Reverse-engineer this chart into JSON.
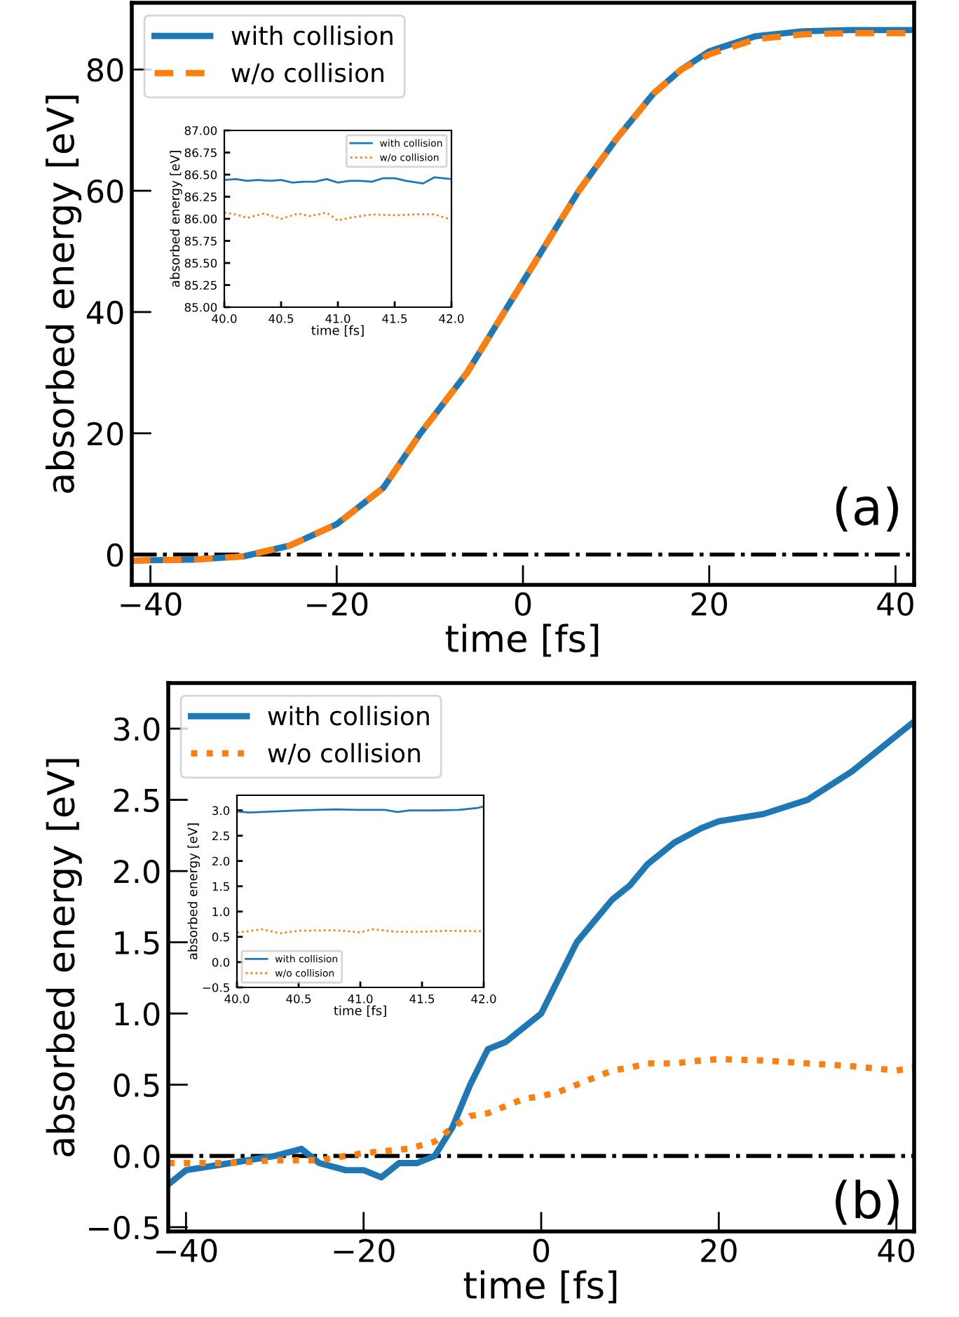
{
  "chart_data": [
    {
      "type": "line",
      "xlabel": "time [fs]",
      "ylabel": "absorbed energy [eV]",
      "xlim": [
        -42,
        42
      ],
      "ylim": [
        -5,
        91
      ],
      "xticks": [
        {
          "value": -40,
          "label": "−40"
        },
        {
          "value": -20,
          "label": "−20"
        },
        0,
        20,
        40
      ],
      "yticks": [
        0,
        20,
        40,
        60,
        80
      ],
      "series": [
        {
          "name": "with collision",
          "color": "#1f77b4",
          "line_style": "solid",
          "x": [
            -42,
            -35,
            -30,
            -25,
            -20,
            -15,
            -11,
            -6,
            -2,
            2,
            6,
            10,
            14,
            17,
            20,
            25,
            30,
            35,
            42
          ],
          "values": [
            -1,
            -0.8,
            -0.3,
            1.5,
            5,
            11,
            20,
            30,
            40,
            50,
            60,
            68.5,
            76,
            80,
            83,
            85.5,
            86.3,
            86.5,
            86.5
          ]
        },
        {
          "name": "w/o collision",
          "color": "#ff7f0e",
          "line_style": "dashed",
          "x": [
            -42,
            -35,
            -30,
            -25,
            -20,
            -15,
            -11,
            -6,
            -2,
            2,
            6,
            10,
            14,
            17,
            20,
            25,
            30,
            35,
            42
          ],
          "values": [
            -1,
            -0.8,
            -0.3,
            1.5,
            5,
            11,
            20,
            30,
            40,
            50,
            60,
            68.5,
            76,
            80,
            82.5,
            85,
            85.8,
            86,
            86
          ]
        }
      ],
      "ref_lines": [
        {
          "axis": "y",
          "value": 0,
          "color": "#000000",
          "line_style": "dashdot"
        }
      ],
      "annotations": [
        "(a)"
      ],
      "legend": "top left",
      "grid": false
    },
    {
      "type": "line",
      "xlabel": "time [fs]",
      "ylabel": "absorbed energy [eV]",
      "xlim": [
        40,
        42
      ],
      "ylim": [
        85,
        87
      ],
      "xticks": [
        {
          "value": 40,
          "label": "40.0"
        },
        40.5,
        {
          "value": 41,
          "label": "41.0"
        },
        41.5,
        {
          "value": 42,
          "label": "42.0"
        }
      ],
      "yticks": [
        {
          "value": 85,
          "label": "85.00"
        },
        85.25,
        {
          "value": 85.5,
          "label": "85.50"
        },
        85.75,
        {
          "value": 86,
          "label": "86.00"
        },
        86.25,
        {
          "value": 86.5,
          "label": "86.50"
        },
        86.75,
        {
          "value": 87,
          "label": "87.00"
        }
      ],
      "series": [
        {
          "name": "with collision",
          "color": "#1f77b4",
          "line_style": "solid",
          "x": [
            40,
            40.1,
            40.2,
            40.3,
            40.4,
            40.5,
            40.6,
            40.7,
            40.8,
            40.9,
            41.0,
            41.1,
            41.2,
            41.3,
            41.4,
            41.5,
            41.6,
            41.7,
            41.75,
            41.85,
            42
          ],
          "values": [
            86.44,
            86.45,
            86.43,
            86.44,
            86.43,
            86.44,
            86.41,
            86.42,
            86.42,
            86.45,
            86.41,
            86.43,
            86.43,
            86.42,
            86.46,
            86.46,
            86.43,
            86.41,
            86.4,
            86.47,
            86.45
          ]
        },
        {
          "name": "w/o collision",
          "color": "#ff7f0e",
          "line_style": "dotted",
          "x": [
            40,
            40.1,
            40.2,
            40.35,
            40.5,
            40.65,
            40.75,
            40.9,
            41.0,
            41.1,
            41.3,
            41.5,
            41.7,
            41.85,
            42
          ],
          "values": [
            86.07,
            86.05,
            86.01,
            86.06,
            86.0,
            86.06,
            86.03,
            86.07,
            85.98,
            86.01,
            86.05,
            86.04,
            86.05,
            86.05,
            85.99
          ]
        }
      ],
      "legend": "top right",
      "grid": false
    },
    {
      "type": "line",
      "xlabel": "time [fs]",
      "ylabel": "absorbed energy [eV]",
      "xlim": [
        -42,
        42
      ],
      "ylim": [
        -0.53,
        3.32
      ],
      "xticks": [
        {
          "value": -40,
          "label": "−40"
        },
        {
          "value": -20,
          "label": "−20"
        },
        0,
        20,
        40
      ],
      "yticks": [
        {
          "value": -0.5,
          "label": "−0.5"
        },
        {
          "value": 0,
          "label": "0.0"
        },
        0.5,
        {
          "value": 1,
          "label": "1.0"
        },
        1.5,
        {
          "value": 2,
          "label": "2.0"
        },
        2.5,
        {
          "value": 3,
          "label": "3.0"
        }
      ],
      "series": [
        {
          "name": "with collision",
          "color": "#1f77b4",
          "line_style": "solid",
          "x": [
            -42,
            -40,
            -35,
            -30,
            -27,
            -25,
            -22,
            -20,
            -18,
            -16,
            -14,
            -12,
            -10,
            -8,
            -6,
            -4,
            -2,
            0,
            2,
            4,
            6,
            8,
            10,
            12,
            15,
            18,
            20,
            25,
            30,
            35,
            40,
            42
          ],
          "values": [
            -0.2,
            -0.1,
            -0.05,
            0.0,
            0.05,
            -0.05,
            -0.1,
            -0.1,
            -0.15,
            -0.05,
            -0.05,
            0.0,
            0.2,
            0.5,
            0.75,
            0.8,
            0.9,
            1.0,
            1.25,
            1.5,
            1.65,
            1.8,
            1.9,
            2.05,
            2.2,
            2.3,
            2.35,
            2.4,
            2.5,
            2.7,
            2.95,
            3.05
          ]
        },
        {
          "name": "w/o collision",
          "color": "#ff7f0e",
          "line_style": "dotted",
          "x": [
            -42,
            -35,
            -30,
            -25,
            -20,
            -15,
            -12,
            -10,
            -8,
            -6,
            -4,
            -2,
            0,
            2,
            4,
            6,
            8,
            10,
            12,
            15,
            18,
            20,
            25,
            30,
            35,
            40,
            42
          ],
          "values": [
            -0.05,
            -0.05,
            -0.03,
            -0.03,
            0.02,
            0.05,
            0.1,
            0.2,
            0.28,
            0.3,
            0.35,
            0.4,
            0.42,
            0.45,
            0.5,
            0.55,
            0.6,
            0.62,
            0.65,
            0.65,
            0.67,
            0.68,
            0.67,
            0.65,
            0.63,
            0.6,
            0.62
          ]
        }
      ],
      "ref_lines": [
        {
          "axis": "y",
          "value": 0,
          "color": "#000000",
          "line_style": "dashdot"
        }
      ],
      "annotations": [
        "(b)"
      ],
      "legend": "top left",
      "grid": false
    },
    {
      "type": "line",
      "xlabel": "time [fs]",
      "ylabel": "absorbed energy [eV]",
      "xlim": [
        40,
        42
      ],
      "ylim": [
        -0.5,
        3.3
      ],
      "xticks": [
        {
          "value": 40,
          "label": "40.0"
        },
        40.5,
        {
          "value": 41,
          "label": "41.0"
        },
        41.5,
        {
          "value": 42,
          "label": "42.0"
        }
      ],
      "yticks": [
        {
          "value": -0.5,
          "label": "−0.5"
        },
        {
          "value": 0,
          "label": "0.0"
        },
        0.5,
        {
          "value": 1,
          "label": "1.0"
        },
        1.5,
        {
          "value": 2,
          "label": "2.0"
        },
        2.5,
        {
          "value": 3,
          "label": "3.0"
        }
      ],
      "series": [
        {
          "name": "with collision",
          "color": "#1f77b4",
          "line_style": "solid",
          "x": [
            40,
            40.1,
            40.3,
            40.5,
            40.8,
            41.0,
            41.2,
            41.3,
            41.4,
            41.6,
            41.8,
            41.95,
            42
          ],
          "values": [
            2.98,
            2.96,
            2.98,
            3.0,
            3.02,
            3.01,
            3.01,
            2.97,
            3.0,
            3.0,
            3.01,
            3.05,
            3.08
          ]
        },
        {
          "name": "w/o collision",
          "color": "#ff7f0e",
          "line_style": "dotted",
          "x": [
            40,
            40.2,
            40.35,
            40.5,
            40.8,
            41.0,
            41.1,
            41.3,
            41.5,
            41.7,
            42
          ],
          "values": [
            0.58,
            0.65,
            0.57,
            0.62,
            0.63,
            0.59,
            0.65,
            0.6,
            0.6,
            0.62,
            0.61
          ]
        }
      ],
      "legend": "bottom left",
      "grid": false
    }
  ]
}
